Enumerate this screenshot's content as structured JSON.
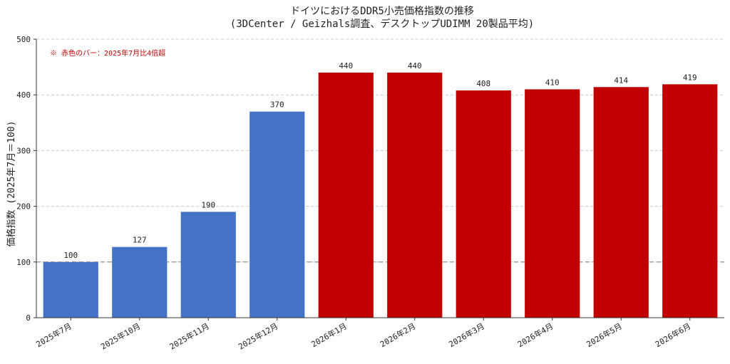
{
  "chart_data": {
    "type": "bar",
    "title_line1": "ドイツにおけるDDR5小売価格指数の推移",
    "title_line2": "(3DCenter / Geizhals調査、デスクトップUDIMM 20製品平均)",
    "ylabel": "価格指数 (2025年7月＝100)",
    "xlabel": "",
    "categories": [
      "2025年7月",
      "2025年10月",
      "2025年11月",
      "2025年12月",
      "2026年1月",
      "2026年2月",
      "2026年3月",
      "2026年4月",
      "2026年5月",
      "2026年6月"
    ],
    "values": [
      100,
      127,
      190,
      370,
      440,
      440,
      408,
      410,
      414,
      419
    ],
    "highlight": [
      false,
      false,
      false,
      false,
      true,
      true,
      true,
      true,
      true,
      true
    ],
    "ylim": [
      0,
      500
    ],
    "yticks": [
      0,
      100,
      200,
      300,
      400,
      500
    ],
    "reference_line": 100,
    "grid": "horizontal-dashed",
    "annotation": "※ 赤色のバー：2025年7月比4倍超"
  },
  "colors": {
    "base_bar": "#4472c4",
    "highlight_bar": "#c00000",
    "annotation": "#c00000",
    "grid": "#cccccc",
    "reference_line": "#888888",
    "axis": "#333333",
    "text": "#222222"
  }
}
